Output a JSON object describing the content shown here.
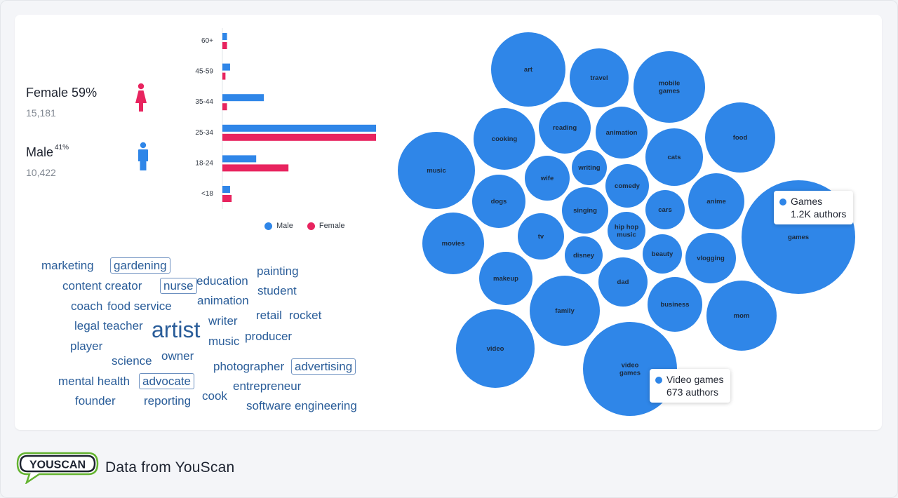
{
  "colors": {
    "male": "#2f86e8",
    "female": "#e8245f",
    "bubble": "#2f86e8",
    "word": "#2a5d99",
    "logo_green": "#63b32f"
  },
  "gender": {
    "female": {
      "label": "Female",
      "pct": "59%",
      "count": "15,181",
      "icon": "female-person-icon"
    },
    "male": {
      "label": "Male",
      "pct": "41%",
      "count": "10,422",
      "icon": "male-person-icon"
    }
  },
  "chart_data": [
    {
      "type": "bar",
      "orientation": "horizontal",
      "categories": [
        "60+",
        "45-59",
        "35-44",
        "25-34",
        "18-24",
        "<18"
      ],
      "series": [
        {
          "name": "Male",
          "values": [
            0.3,
            0.5,
            2.7,
            10.0,
            2.2,
            0.5
          ]
        },
        {
          "name": "Female",
          "values": [
            0.3,
            0.2,
            0.3,
            10.0,
            4.3,
            0.6
          ]
        }
      ],
      "legend": "bottom"
    },
    {
      "type": "bubble",
      "bubbles": [
        {
          "label": "art",
          "r": 53
        },
        {
          "label": "travel",
          "r": 42
        },
        {
          "label": "mobile games",
          "r": 51
        },
        {
          "label": "cooking",
          "r": 44
        },
        {
          "label": "reading",
          "r": 37
        },
        {
          "label": "animation",
          "r": 37
        },
        {
          "label": "food",
          "r": 50
        },
        {
          "label": "music",
          "r": 55
        },
        {
          "label": "writing",
          "r": 25
        },
        {
          "label": "wife",
          "r": 32
        },
        {
          "label": "cats",
          "r": 41
        },
        {
          "label": "comedy",
          "r": 31
        },
        {
          "label": "dogs",
          "r": 38
        },
        {
          "label": "anime",
          "r": 40
        },
        {
          "label": "singing",
          "r": 33
        },
        {
          "label": "cars",
          "r": 28
        },
        {
          "label": "hip hop music",
          "r": 27
        },
        {
          "label": "tv",
          "r": 33
        },
        {
          "label": "games",
          "r": 81
        },
        {
          "label": "movies",
          "r": 44
        },
        {
          "label": "beauty",
          "r": 28
        },
        {
          "label": "vlogging",
          "r": 36
        },
        {
          "label": "disney",
          "r": 27
        },
        {
          "label": "makeup",
          "r": 38
        },
        {
          "label": "dad",
          "r": 35
        },
        {
          "label": "business",
          "r": 39
        },
        {
          "label": "family",
          "r": 50
        },
        {
          "label": "mom",
          "r": 50
        },
        {
          "label": "video",
          "r": 56
        },
        {
          "label": "video games",
          "r": 67
        }
      ]
    }
  ],
  "tooltips": {
    "games": {
      "title": "Games",
      "value": "1.2K authors"
    },
    "video_games": {
      "title": "Video games",
      "value": "673 authors"
    }
  },
  "word_cloud": [
    {
      "text": "marketing",
      "size": 17
    },
    {
      "text": "gardening",
      "size": 17,
      "boxed": true
    },
    {
      "text": "content creator",
      "size": 17
    },
    {
      "text": "nurse",
      "size": 17,
      "boxed": true
    },
    {
      "text": "education",
      "size": 17
    },
    {
      "text": "painting",
      "size": 17
    },
    {
      "text": "student",
      "size": 17
    },
    {
      "text": "coach",
      "size": 17
    },
    {
      "text": "food service",
      "size": 17
    },
    {
      "text": "animation",
      "size": 17
    },
    {
      "text": "retail",
      "size": 17
    },
    {
      "text": "rocket",
      "size": 17
    },
    {
      "text": "legal",
      "size": 17
    },
    {
      "text": "teacher",
      "size": 17
    },
    {
      "text": "artist",
      "size": 32
    },
    {
      "text": "writer",
      "size": 17
    },
    {
      "text": "producer",
      "size": 17
    },
    {
      "text": "player",
      "size": 17
    },
    {
      "text": "music",
      "size": 17
    },
    {
      "text": "science",
      "size": 17
    },
    {
      "text": "owner",
      "size": 17
    },
    {
      "text": "photographer",
      "size": 17
    },
    {
      "text": "advertising",
      "size": 17,
      "boxed": true
    },
    {
      "text": "mental health",
      "size": 17
    },
    {
      "text": "advocate",
      "size": 17,
      "boxed": true
    },
    {
      "text": "entrepreneur",
      "size": 17
    },
    {
      "text": "founder",
      "size": 17
    },
    {
      "text": "reporting",
      "size": 17
    },
    {
      "text": "cook",
      "size": 17
    },
    {
      "text": "software engineering",
      "size": 17
    }
  ],
  "footer": {
    "logo_text": "YOUSCAN",
    "source": "Data from YouScan"
  }
}
